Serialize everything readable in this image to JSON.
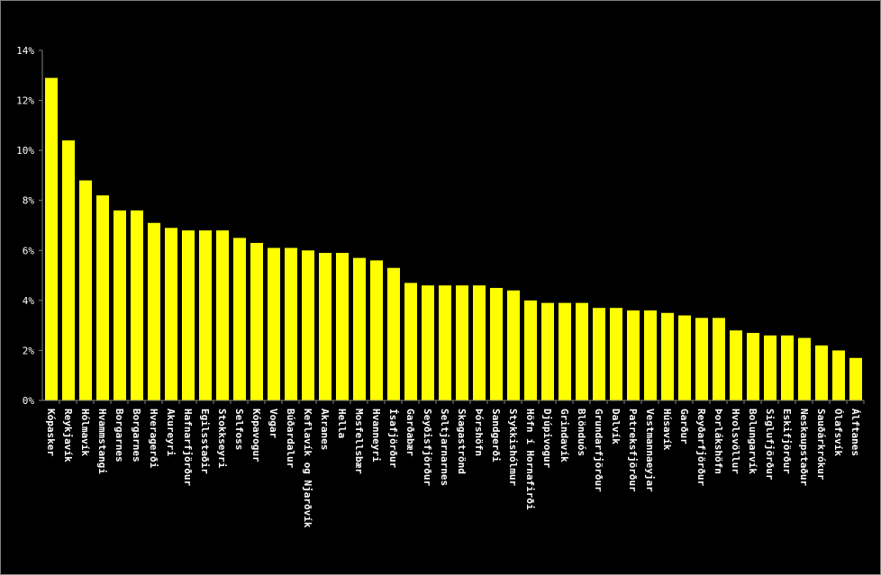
{
  "chart_data": {
    "type": "bar",
    "title": "",
    "xlabel": "",
    "ylabel": "",
    "ylim": [
      0,
      14
    ],
    "yticks": [
      "0%",
      "2%",
      "4%",
      "6%",
      "8%",
      "10%",
      "12%",
      "14%"
    ],
    "grid": false,
    "bar_color": "#FFFF00",
    "background": "#000000",
    "categories": [
      "Kópasker",
      "Reykjavík",
      "Hólmavík",
      "Hvammstangi",
      "Borgarnes",
      "Borgarnes",
      "Hveragerði",
      "Akureyri",
      "Hafnarfjörður",
      "Egilsstaðir",
      "Stokkseyri",
      "Selfoss",
      "Kópavogur",
      "Vogar",
      "Búðardalur",
      "Keflavík og Njarðvík",
      "Akranes",
      "Hella",
      "Mosfellsbær",
      "Hvanneyri",
      "Ísafjörður",
      "Garðabær",
      "Seyðisfjörður",
      "Seltjarnarnes",
      "Skagaströnd",
      "Þórshöfn",
      "Sandgerði",
      "Stykkishólmur",
      "Höfn í Hornafirði",
      "Djúpivogur",
      "Grindavík",
      "Blönduós",
      "Grundarfjörður",
      "Dalvík",
      "Patreksfjörður",
      "Vestmannaeyjar",
      "Húsavík",
      "Garður",
      "Reyðarfjörður",
      "Þorlákshöfn",
      "Hvolsvöllur",
      "Bolungarvík",
      "Siglufjörður",
      "Eskifjörður",
      "Neskaupstaður",
      "Sauðárkrókur",
      "Ólafsvík",
      "Álftanes"
    ],
    "values": [
      12.9,
      10.4,
      8.8,
      8.2,
      7.6,
      7.6,
      7.1,
      6.9,
      6.8,
      6.8,
      6.8,
      6.5,
      6.3,
      6.1,
      6.1,
      6.0,
      5.9,
      5.9,
      5.7,
      5.6,
      5.3,
      4.7,
      4.6,
      4.6,
      4.6,
      4.6,
      4.5,
      4.4,
      4.0,
      3.9,
      3.9,
      3.9,
      3.7,
      3.7,
      3.6,
      3.6,
      3.5,
      3.4,
      3.3,
      3.3,
      2.8,
      2.7,
      2.6,
      2.6,
      2.5,
      2.2,
      2.0,
      1.7
    ]
  }
}
